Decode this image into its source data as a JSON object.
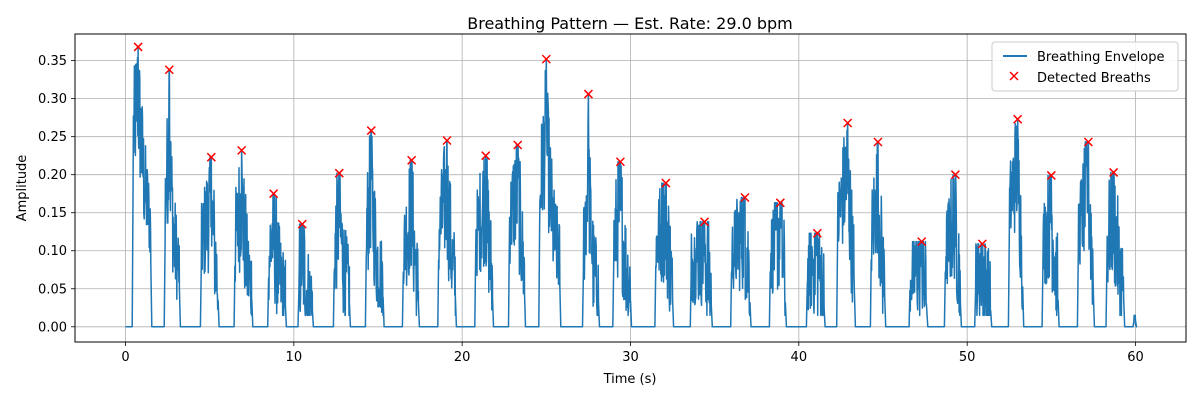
{
  "chart_data": {
    "type": "line",
    "title": "Breathing Pattern — Est. Rate: 29.0 bpm",
    "xlabel": "Time (s)",
    "ylabel": "Amplitude",
    "xlim": [
      -3,
      63
    ],
    "ylim": [
      -0.02,
      0.385
    ],
    "xticks": [
      0,
      10,
      20,
      30,
      40,
      50,
      60
    ],
    "yticks": [
      0.0,
      0.05,
      0.1,
      0.15,
      0.2,
      0.25,
      0.3,
      0.35
    ],
    "grid": true,
    "legend_position": "top-right",
    "colors": {
      "envelope": "#1f77b4",
      "peaks": "#ff0000"
    },
    "series": [
      {
        "name": "Breathing Envelope",
        "kind": "line",
        "bursts": [
          {
            "start": 0.45,
            "end": 1.5,
            "peak_t": 0.75,
            "peak": 0.368,
            "base": 0.24
          },
          {
            "start": 2.35,
            "end": 3.2,
            "peak_t": 2.6,
            "peak": 0.338,
            "base": 0.14
          },
          {
            "start": 4.5,
            "end": 5.5,
            "peak_t": 5.1,
            "peak": 0.223,
            "base": 0.1
          },
          {
            "start": 6.5,
            "end": 7.5,
            "peak_t": 6.9,
            "peak": 0.232,
            "base": 0.1
          },
          {
            "start": 8.5,
            "end": 9.5,
            "peak_t": 8.8,
            "peak": 0.175,
            "base": 0.08
          },
          {
            "start": 10.3,
            "end": 11.1,
            "peak_t": 10.5,
            "peak": 0.135,
            "base": 0.06
          },
          {
            "start": 12.4,
            "end": 13.3,
            "peak_t": 12.7,
            "peak": 0.202,
            "base": 0.09
          },
          {
            "start": 14.3,
            "end": 15.3,
            "peak_t": 14.6,
            "peak": 0.258,
            "base": 0.11
          },
          {
            "start": 16.5,
            "end": 17.4,
            "peak_t": 17.0,
            "peak": 0.219,
            "base": 0.09
          },
          {
            "start": 18.6,
            "end": 19.6,
            "peak_t": 19.1,
            "peak": 0.245,
            "base": 0.11
          },
          {
            "start": 20.8,
            "end": 21.8,
            "peak_t": 21.4,
            "peak": 0.225,
            "base": 0.11
          },
          {
            "start": 22.8,
            "end": 23.7,
            "peak_t": 23.3,
            "peak": 0.239,
            "base": 0.13
          },
          {
            "start": 24.6,
            "end": 25.8,
            "peak_t": 25.0,
            "peak": 0.352,
            "base": 0.16
          },
          {
            "start": 27.2,
            "end": 28.1,
            "peak_t": 27.5,
            "peak": 0.306,
            "base": 0.09
          },
          {
            "start": 29.0,
            "end": 30.0,
            "peak_t": 29.4,
            "peak": 0.217,
            "base": 0.1
          },
          {
            "start": 31.5,
            "end": 32.5,
            "peak_t": 32.1,
            "peak": 0.189,
            "base": 0.1
          },
          {
            "start": 33.6,
            "end": 34.8,
            "peak_t": 34.4,
            "peak": 0.138,
            "base": 0.08
          },
          {
            "start": 36.0,
            "end": 37.1,
            "peak_t": 36.8,
            "peak": 0.17,
            "base": 0.09
          },
          {
            "start": 38.3,
            "end": 39.2,
            "peak_t": 38.9,
            "peak": 0.163,
            "base": 0.09
          },
          {
            "start": 40.5,
            "end": 41.5,
            "peak_t": 41.1,
            "peak": 0.123,
            "base": 0.07
          },
          {
            "start": 42.3,
            "end": 43.3,
            "peak_t": 42.9,
            "peak": 0.268,
            "base": 0.13
          },
          {
            "start": 44.3,
            "end": 45.1,
            "peak_t": 44.7,
            "peak": 0.243,
            "base": 0.11
          },
          {
            "start": 46.6,
            "end": 47.6,
            "peak_t": 47.3,
            "peak": 0.112,
            "base": 0.06
          },
          {
            "start": 48.7,
            "end": 49.6,
            "peak_t": 49.3,
            "peak": 0.2,
            "base": 0.09
          },
          {
            "start": 50.5,
            "end": 51.4,
            "peak_t": 50.9,
            "peak": 0.109,
            "base": 0.06
          },
          {
            "start": 52.5,
            "end": 53.3,
            "peak_t": 53.0,
            "peak": 0.273,
            "base": 0.15
          },
          {
            "start": 54.5,
            "end": 55.4,
            "peak_t": 55.0,
            "peak": 0.199,
            "base": 0.1
          },
          {
            "start": 56.6,
            "end": 57.5,
            "peak_t": 57.2,
            "peak": 0.243,
            "base": 0.12
          },
          {
            "start": 58.3,
            "end": 59.3,
            "peak_t": 58.7,
            "peak": 0.203,
            "base": 0.1
          },
          {
            "start": 59.9,
            "end": 60.0,
            "peak_t": 60.0,
            "peak": 0.008,
            "base": 0.008
          }
        ]
      },
      {
        "name": "Detected Breaths",
        "kind": "markers",
        "marker": "x",
        "x": [
          0.75,
          2.6,
          5.1,
          6.9,
          8.8,
          10.5,
          12.7,
          14.6,
          17.0,
          19.1,
          21.4,
          23.3,
          25.0,
          27.5,
          29.4,
          32.1,
          34.4,
          36.8,
          38.9,
          41.1,
          42.9,
          44.7,
          47.3,
          49.3,
          50.9,
          53.0,
          55.0,
          57.2,
          58.7
        ],
        "y": [
          0.368,
          0.338,
          0.223,
          0.232,
          0.175,
          0.135,
          0.202,
          0.258,
          0.219,
          0.245,
          0.225,
          0.239,
          0.352,
          0.306,
          0.217,
          0.189,
          0.138,
          0.17,
          0.163,
          0.123,
          0.268,
          0.243,
          0.112,
          0.2,
          0.109,
          0.273,
          0.199,
          0.243,
          0.203
        ]
      }
    ]
  }
}
